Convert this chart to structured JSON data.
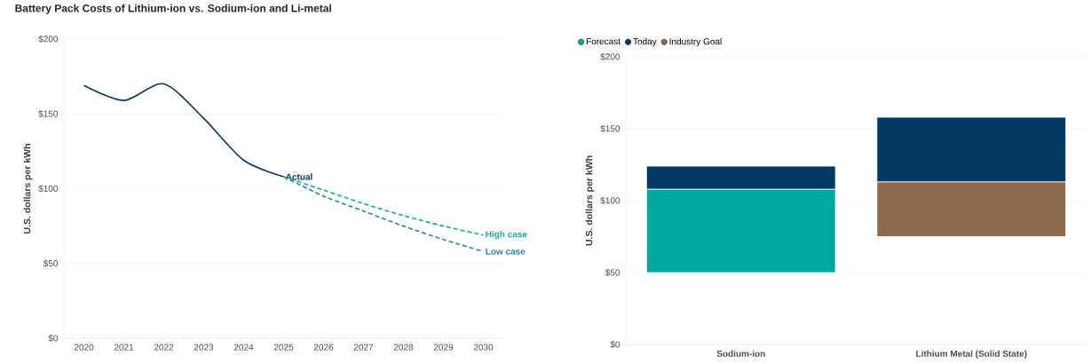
{
  "chart_data": [
    {
      "type": "line",
      "title": "Battery Pack Costs of Lithium-ion vs. Sodium-ion and Li-metal",
      "ylabel": "U.S. dollars per kWh",
      "series": [
        {
          "name": "Actual",
          "color": "#04375e",
          "line_style": "solid",
          "x": [
            2020,
            2021,
            2022,
            2023,
            2024,
            2025
          ],
          "values": [
            169,
            159,
            170,
            147,
            119,
            108
          ]
        },
        {
          "name": "High case",
          "color": "#17a9a0",
          "line_style": "dashed",
          "x": [
            2025,
            2026,
            2027,
            2028,
            2029,
            2030
          ],
          "values": [
            108,
            99,
            90,
            82,
            75,
            69
          ]
        },
        {
          "name": "Low case",
          "color": "#2f7fb3",
          "line_style": "dashed",
          "x": [
            2025,
            2026,
            2027,
            2028,
            2029,
            2030
          ],
          "values": [
            108,
            95,
            85,
            75,
            66,
            58
          ]
        }
      ],
      "xlim": [
        2019.5,
        2030.5
      ],
      "ylim": [
        0,
        200
      ],
      "xticks": [
        2020,
        2021,
        2022,
        2023,
        2024,
        2025,
        2026,
        2027,
        2028,
        2029,
        2030
      ],
      "yticks": [
        {
          "value": 0,
          "label": "$0"
        },
        {
          "value": 50,
          "label": "$50"
        },
        {
          "value": 100,
          "label": "$100"
        },
        {
          "value": 150,
          "label": "$150"
        },
        {
          "value": 200,
          "label": "$200"
        }
      ],
      "grid": "y"
    },
    {
      "type": "bar",
      "ylabel": "U.S. dollars per kWh",
      "categories": [
        "Sodium-ion",
        "Lithium Metal (Solid State)"
      ],
      "series": [
        {
          "name": "Forecast",
          "color": "#00a89d",
          "base": [
            50,
            null
          ],
          "values": [
            58,
            null
          ]
        },
        {
          "name": "Today",
          "color": "#033863",
          "base": [
            108,
            113
          ],
          "values": [
            16,
            45
          ]
        },
        {
          "name": "Industry Goal",
          "color": "#8b6a50",
          "base": [
            null,
            75
          ],
          "values": [
            null,
            38
          ]
        }
      ],
      "ylim": [
        0,
        200
      ],
      "yticks": [
        {
          "value": 0,
          "label": "$0"
        },
        {
          "value": 50,
          "label": "$50"
        },
        {
          "value": 100,
          "label": "$100"
        },
        {
          "value": 150,
          "label": "$150"
        },
        {
          "value": 200,
          "label": "$200"
        }
      ],
      "grid": "y",
      "legend": "top left"
    }
  ]
}
